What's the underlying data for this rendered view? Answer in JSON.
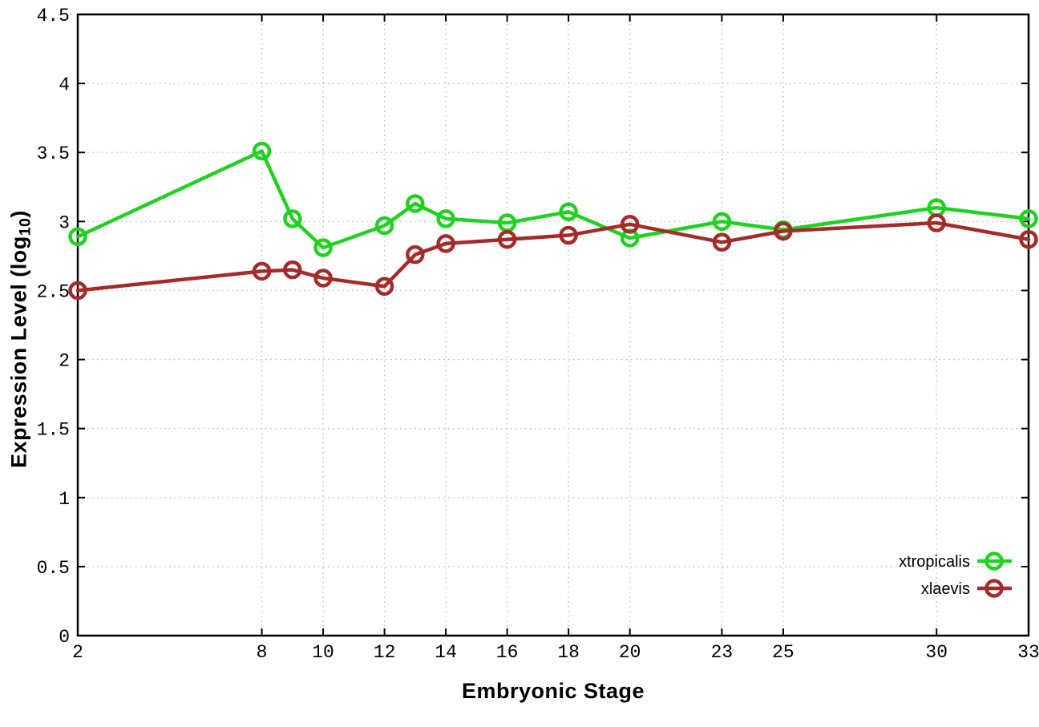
{
  "chart_data": {
    "type": "line",
    "title": "",
    "xlabel": "Embryonic Stage",
    "ylabel": "Expression Level (log10)",
    "ylabel_parts": {
      "pre": "Expression Level (log",
      "sub": "10",
      "post": ")"
    },
    "xlim": [
      2,
      33
    ],
    "ylim": [
      0,
      4.5
    ],
    "x_tick_labels": [
      2,
      8,
      10,
      12,
      14,
      16,
      18,
      20,
      23,
      25,
      30,
      33
    ],
    "y_tick_labels": [
      0,
      0.5,
      1,
      1.5,
      2,
      2.5,
      3,
      3.5,
      4,
      4.5
    ],
    "grid": true,
    "legend_position": "inside-bottom-right",
    "x": [
      2,
      8,
      9,
      10,
      12,
      13,
      14,
      16,
      18,
      20,
      23,
      25,
      30,
      33
    ],
    "series": [
      {
        "name": "xtropicalis",
        "color": "#21d121",
        "marker": "open-circle",
        "values": [
          2.89,
          3.51,
          3.02,
          2.81,
          2.97,
          3.13,
          3.02,
          2.99,
          3.07,
          2.88,
          3.0,
          2.94,
          3.1,
          3.02
        ]
      },
      {
        "name": "xlaevis",
        "color": "#a52a2a",
        "marker": "open-circle",
        "values": [
          2.5,
          2.64,
          2.65,
          2.59,
          2.53,
          2.76,
          2.84,
          2.87,
          2.9,
          2.98,
          2.85,
          2.93,
          2.99,
          2.87
        ]
      }
    ]
  },
  "colors": {
    "background": "#ffffff",
    "plot_border": "#000000",
    "grid": "#b9b9b9",
    "tick_text": "#000000"
  }
}
